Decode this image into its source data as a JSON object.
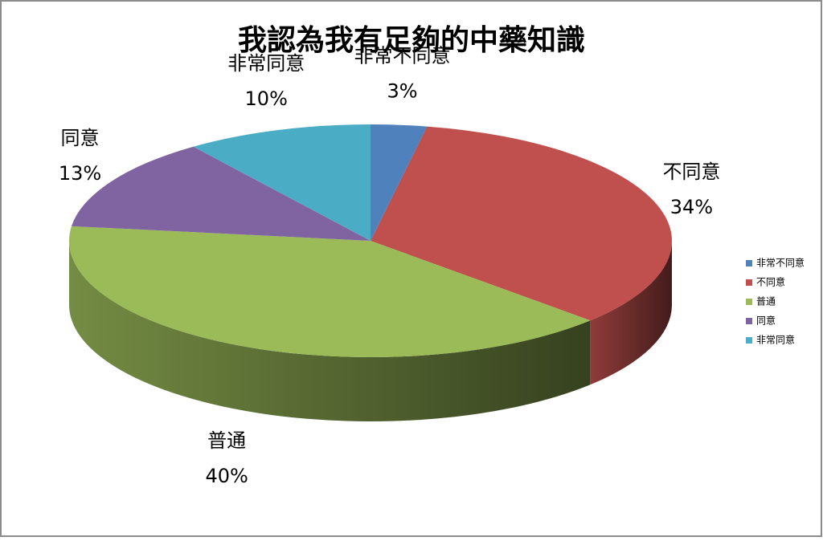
{
  "chart_data": {
    "type": "pie3d",
    "title": "我認為我有足夠的中藥知識",
    "categories": [
      "非常不同意",
      "不同意",
      "普通",
      "同意",
      "非常同意"
    ],
    "values": [
      3,
      34,
      40,
      13,
      10
    ],
    "value_labels": [
      "3%",
      "34%",
      "40%",
      "13%",
      "10%"
    ],
    "colors": [
      "#4f81bd",
      "#c0504d",
      "#9bbb59",
      "#8064a2",
      "#4bacc6"
    ],
    "legend": "right"
  }
}
